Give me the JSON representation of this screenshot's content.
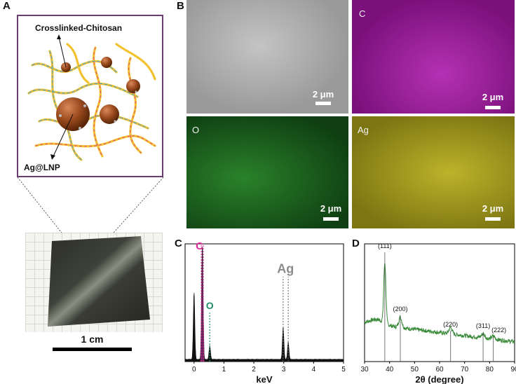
{
  "panels": {
    "a": "A",
    "b": "B",
    "c": "C",
    "d": "D"
  },
  "panel_a": {
    "top_label": "Crosslinked-Chitosan",
    "bottom_label": "Ag@LNP",
    "scale_label": "1 cm"
  },
  "panel_b": {
    "tiles": [
      {
        "label": "",
        "scale": "2 μm",
        "color": "#9a9a9a"
      },
      {
        "label": "C",
        "scale": "2 μm",
        "color": "#a61ea6"
      },
      {
        "label": "O",
        "scale": "2 μm",
        "color": "#1f6e1f"
      },
      {
        "label": "Ag",
        "scale": "2 μm",
        "color": "#a39a1f"
      }
    ]
  },
  "chart_data": [
    {
      "type": "area",
      "panel": "C",
      "xlabel": "keV",
      "xlim": [
        -0.3,
        5
      ],
      "xticks": [
        "0",
        "1",
        "2",
        "3",
        "4",
        "5"
      ],
      "peaks": [
        {
          "x": 0.0,
          "height": 0.58
        },
        {
          "x": 0.277,
          "height": 1.0
        },
        {
          "x": 0.525,
          "height": 0.12
        },
        {
          "x": 2.98,
          "height": 0.28
        },
        {
          "x": 3.15,
          "height": 0.15
        }
      ],
      "annotations": [
        {
          "text": "C",
          "x": 0.277,
          "color": "#e0299a"
        },
        {
          "text": "O",
          "x": 0.525,
          "color": "#1e8c68"
        },
        {
          "text": "Ag",
          "x": 3.06,
          "color": "#8c8c8c"
        }
      ]
    },
    {
      "type": "line",
      "panel": "D",
      "xlabel": "2θ (degree)",
      "xlim": [
        30,
        90
      ],
      "xticks": [
        "30",
        "40",
        "50",
        "60",
        "70",
        "80",
        "90"
      ],
      "color": "#3a8a3a",
      "reflections": [
        {
          "label": "(111)",
          "x": 38.1,
          "y": 1.0
        },
        {
          "label": "(200)",
          "x": 44.3,
          "y": 0.2
        },
        {
          "label": "(220)",
          "x": 64.4,
          "y": 0.1
        },
        {
          "label": "(311)",
          "x": 77.4,
          "y": 0.1
        },
        {
          "label": "(222)",
          "x": 81.5,
          "y": 0.06
        }
      ]
    }
  ]
}
